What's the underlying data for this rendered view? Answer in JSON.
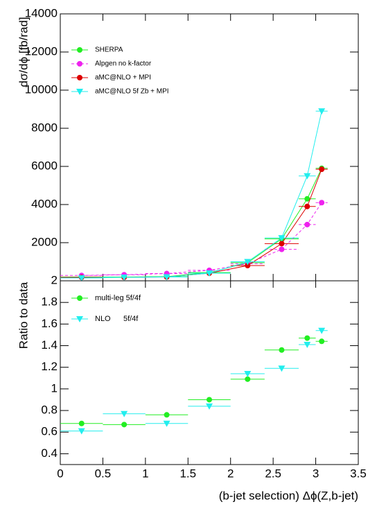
{
  "chart_data": [
    {
      "type": "line",
      "ylabel": "dσ/dϕ [fb/rad]",
      "x": [
        0.25,
        0.75,
        1.25,
        1.75,
        2.2,
        2.6,
        2.9,
        3.07
      ],
      "xerr": [
        0.25,
        0.25,
        0.25,
        0.25,
        0.2,
        0.2,
        0.1,
        0.07
      ],
      "xlim": [
        0,
        3.5
      ],
      "xticks": [
        0,
        0.5,
        1,
        1.5,
        2,
        2.5,
        3,
        3.5
      ],
      "ylim": [
        0,
        14000
      ],
      "yticks": [
        2000,
        4000,
        6000,
        8000,
        10000,
        12000,
        14000
      ],
      "legend": "upper left",
      "series": [
        {
          "name": "SHERPA",
          "color": "#22ee22",
          "marker": "circle",
          "dashed": false,
          "values": [
            200,
            200,
            220,
            430,
            950,
            2200,
            4300,
            5900
          ]
        },
        {
          "name": "Alpgen no k-factor",
          "color": "#ee22ee",
          "marker": "circle",
          "dashed": true,
          "values": [
            280,
            320,
            380,
            550,
            900,
            1650,
            2950,
            4100
          ]
        },
        {
          "name": "aMC@NLO + MPI",
          "color": "#dd0000",
          "marker": "circle",
          "dashed": false,
          "values": [
            180,
            180,
            200,
            400,
            800,
            1950,
            3900,
            5850
          ]
        },
        {
          "name": "aMC@NLO 5f Zb + MPI",
          "color": "#22eeee",
          "marker": "triangle",
          "dashed": false,
          "values": [
            150,
            180,
            200,
            400,
            1000,
            2250,
            5500,
            8900
          ]
        }
      ]
    },
    {
      "type": "scatter",
      "ylabel": "Ratio to data",
      "xlabel": "(b-jet selection)  Δϕ(Z,b-jet)",
      "x": [
        0.25,
        0.75,
        1.25,
        1.75,
        2.2,
        2.6,
        2.9,
        3.07
      ],
      "xerr": [
        0.25,
        0.25,
        0.25,
        0.25,
        0.2,
        0.2,
        0.1,
        0.07
      ],
      "xlim": [
        0,
        3.5
      ],
      "xticks": [
        0,
        0.5,
        1,
        1.5,
        2,
        2.5,
        3,
        3.5
      ],
      "ylim": [
        0.3,
        2
      ],
      "yticks": [
        0.4,
        0.6,
        0.8,
        1,
        1.2,
        1.4,
        1.6,
        1.8,
        2
      ],
      "legend": "upper left",
      "series": [
        {
          "name": "multi-leg 5f/4f",
          "color": "#22ee22",
          "marker": "circle",
          "values": [
            0.68,
            0.67,
            0.76,
            0.9,
            1.09,
            1.36,
            1.47,
            1.44
          ]
        },
        {
          "name": "NLO      5f/4f",
          "color": "#22eeee",
          "marker": "triangle",
          "values": [
            0.61,
            0.77,
            0.68,
            0.84,
            1.14,
            1.19,
            1.41,
            1.54
          ]
        }
      ]
    }
  ]
}
